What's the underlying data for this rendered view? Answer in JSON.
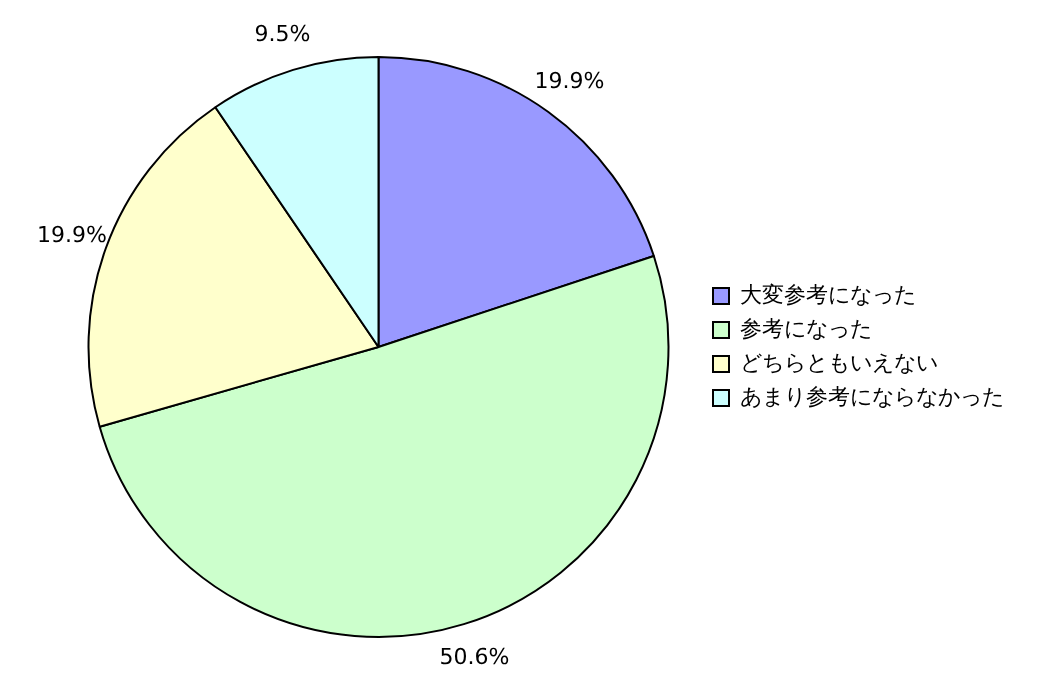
{
  "chart_data": {
    "type": "pie",
    "categories": [
      "大変参考になった",
      "参考になった",
      "どちらともいえない",
      "あまり参考にならなかった"
    ],
    "values": [
      19.9,
      50.6,
      19.9,
      9.5
    ],
    "colors": [
      "#9999ff",
      "#ccffcc",
      "#ffffcc",
      "#ccffff"
    ],
    "value_labels": [
      "19.9%",
      "50.6%",
      "19.9%",
      "9.5%"
    ],
    "legend": "right"
  }
}
